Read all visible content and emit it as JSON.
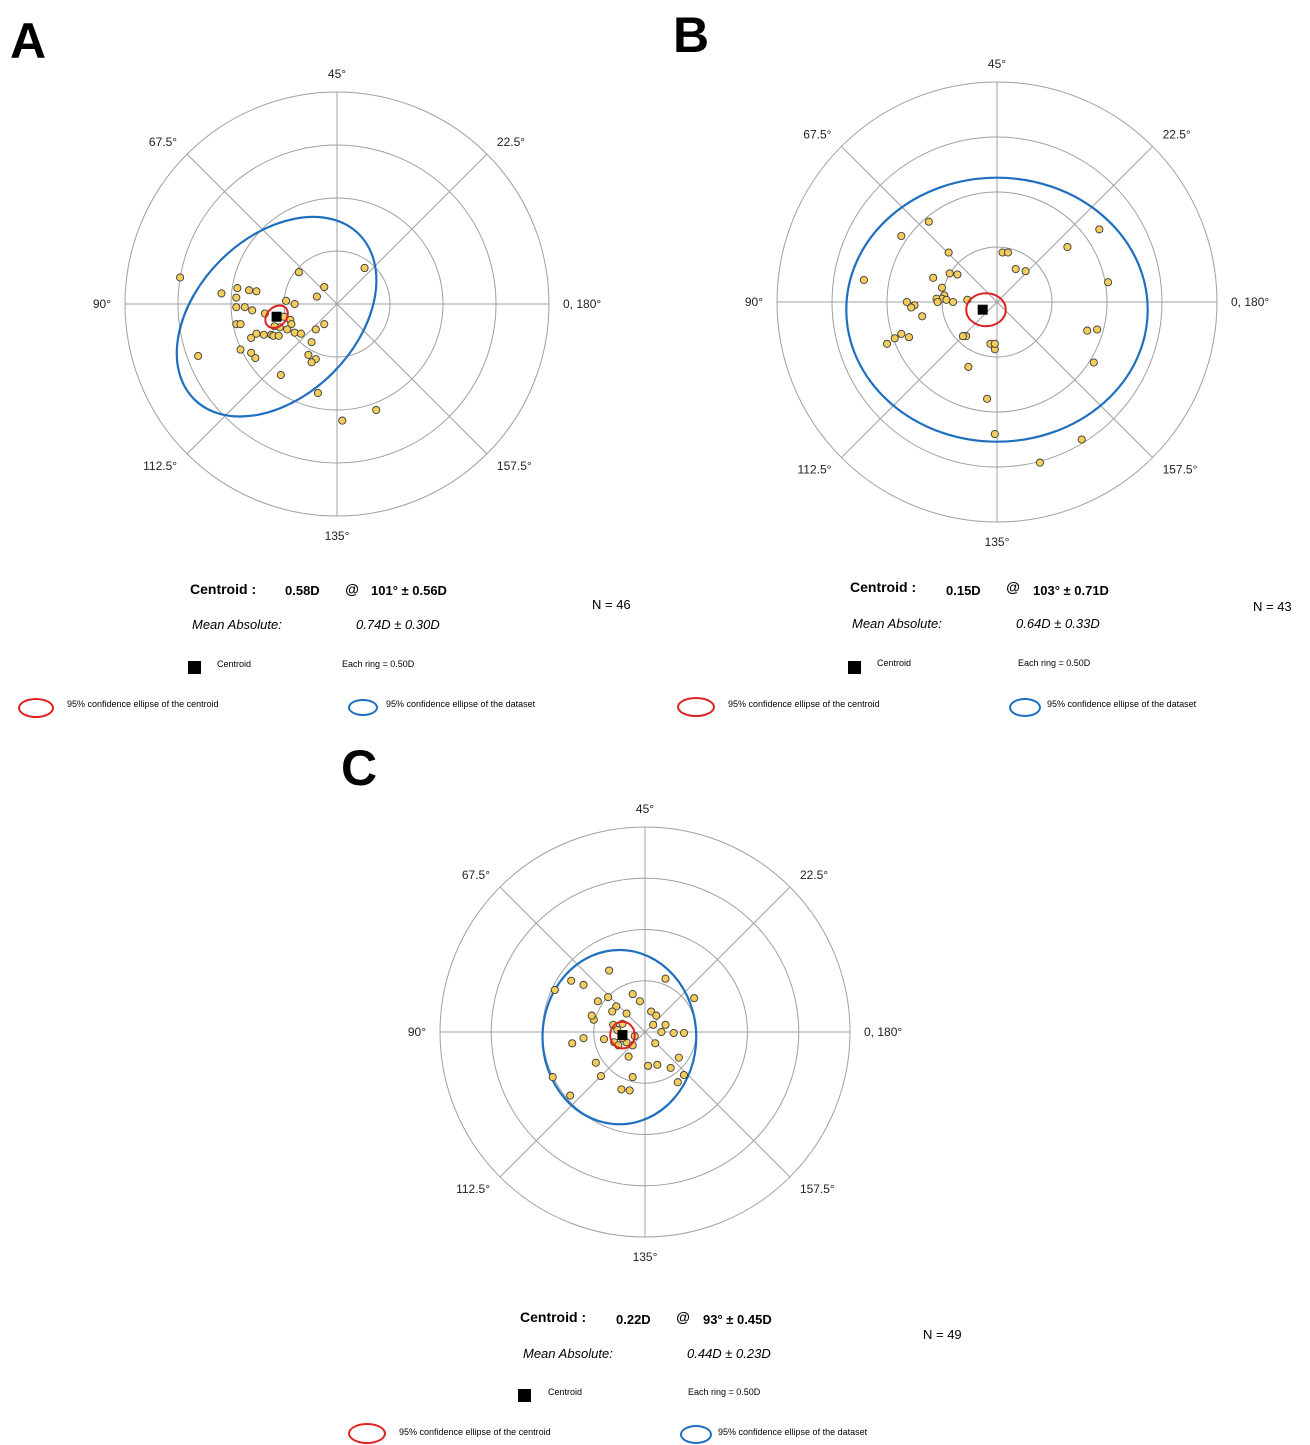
{
  "colors": {
    "point_fill": "#f2cd5c",
    "point_stroke": "#3a3a3a",
    "centroid_ellipse": "#e02020",
    "dataset_ellipse": "#1f6fc0",
    "grid": "#a0a0a0",
    "centroid": "#000000"
  },
  "panels": [
    {
      "panel_label": "A",
      "angle_labels": [
        "45°",
        "22.5°",
        "0, 180°",
        "157.5°",
        "135°",
        "112.5°",
        "90°",
        "67.5°"
      ],
      "stats": {
        "centroid_label": "Centroid :",
        "centroid_value": "0.58D",
        "at": "@",
        "axis_value": "101° ± 0.56D",
        "mean_label": "Mean Absolute:",
        "mean_value": "0.74D  ±  0.30D",
        "n": "N = 46"
      },
      "legend": {
        "centroid": "Centroid",
        "ring": "Each ring = 0.50D",
        "centroid_ellipse": "95% confidence ellipse of the centroid",
        "dataset_ellipse": "95% confidence ellipse of the dataset"
      },
      "chart_data": {
        "type": "scatter",
        "coordinates": "double-angle polar",
        "ring_step": 0.5,
        "rings": 4,
        "centroid": {
          "x": -0.57,
          "y": -0.12
        },
        "centroid_ellipse": {
          "cx": -0.57,
          "cy": -0.12,
          "rx": 0.12,
          "ry": 0.09,
          "rotation": -45
        },
        "dataset_ellipse": {
          "cx": -0.57,
          "cy": -0.12,
          "rx": 1.1,
          "ry": 0.75,
          "rotation": -45
        },
        "points": [
          [
            0.26,
            0.34
          ],
          [
            -0.36,
            0.3
          ],
          [
            -0.12,
            0.16
          ],
          [
            -1.48,
            0.25
          ],
          [
            -1.09,
            0.1
          ],
          [
            -0.94,
            0.15
          ],
          [
            -0.83,
            0.13
          ],
          [
            -0.76,
            0.12
          ],
          [
            -0.95,
            0.06
          ],
          [
            -0.87,
            -0.03
          ],
          [
            -0.95,
            -0.03
          ],
          [
            -0.68,
            -0.09
          ],
          [
            -0.48,
            0.03
          ],
          [
            -0.4,
            0.0
          ],
          [
            -0.19,
            0.07
          ],
          [
            -0.8,
            -0.06
          ],
          [
            -0.95,
            -0.19
          ],
          [
            -0.91,
            -0.19
          ],
          [
            -0.81,
            -0.32
          ],
          [
            -0.76,
            -0.28
          ],
          [
            -0.69,
            -0.29
          ],
          [
            -0.62,
            -0.29
          ],
          [
            -0.54,
            -0.22
          ],
          [
            -0.5,
            -0.12
          ],
          [
            -0.44,
            -0.15
          ],
          [
            -0.43,
            -0.19
          ],
          [
            -0.4,
            -0.27
          ],
          [
            -0.34,
            -0.28
          ],
          [
            -0.2,
            -0.24
          ],
          [
            -0.24,
            -0.36
          ],
          [
            -0.12,
            -0.19
          ],
          [
            -0.91,
            -0.43
          ],
          [
            -0.81,
            -0.46
          ],
          [
            -0.77,
            -0.51
          ],
          [
            -0.27,
            -0.48
          ],
          [
            -0.2,
            -0.52
          ],
          [
            -0.24,
            -0.55
          ],
          [
            -0.53,
            -0.67
          ],
          [
            -0.18,
            -0.84
          ],
          [
            0.05,
            -1.1
          ],
          [
            0.37,
            -1.0
          ],
          [
            -1.31,
            -0.49
          ],
          [
            -0.59,
            -0.21
          ],
          [
            -0.47,
            -0.24
          ],
          [
            -0.6,
            -0.3
          ],
          [
            -0.55,
            -0.3
          ]
        ]
      }
    },
    {
      "panel_label": "B",
      "angle_labels": [
        "45°",
        "22.5°",
        "0, 180°",
        "157.5°",
        "135°",
        "112.5°",
        "90°",
        "67.5°"
      ],
      "stats": {
        "centroid_label": "Centroid :",
        "centroid_value": "0.15D",
        "at": "@",
        "axis_value": "103° ± 0.71D",
        "mean_label": "Mean Absolute:",
        "mean_value": "0.64D  ±  0.33D",
        "n": "N = 43"
      },
      "legend": {
        "centroid": "Centroid",
        "ring": "Each ring = 0.50D",
        "centroid_ellipse": "95% confidence ellipse of the centroid",
        "dataset_ellipse": "95% confidence ellipse of the dataset"
      },
      "chart_data": {
        "type": "scatter",
        "coordinates": "double-angle polar",
        "ring_step": 0.5,
        "rings": 4,
        "centroid": {
          "x": -0.13,
          "y": -0.07
        },
        "centroid_ellipse": {
          "cx": -0.1,
          "cy": -0.07,
          "rx": 0.18,
          "ry": 0.15,
          "rotation": 0
        },
        "dataset_ellipse": {
          "cx": 0.0,
          "cy": -0.07,
          "rx": 1.37,
          "ry": 1.2,
          "rotation": 0
        },
        "points": [
          [
            -0.62,
            0.73
          ],
          [
            -0.87,
            0.6
          ],
          [
            -0.44,
            0.45
          ],
          [
            0.05,
            0.45
          ],
          [
            0.1,
            0.45
          ],
          [
            0.17,
            0.3
          ],
          [
            0.26,
            0.28
          ],
          [
            0.64,
            0.5
          ],
          [
            0.93,
            0.66
          ],
          [
            -0.58,
            0.22
          ],
          [
            -0.43,
            0.26
          ],
          [
            -0.36,
            0.25
          ],
          [
            -0.5,
            0.13
          ],
          [
            -0.48,
            0.06
          ],
          [
            -0.5,
            0.03
          ],
          [
            -0.55,
            0.03
          ],
          [
            -0.54,
            0.0
          ],
          [
            -0.46,
            0.02
          ],
          [
            -0.4,
            0.0
          ],
          [
            -1.21,
            0.2
          ],
          [
            -0.82,
            0.0
          ],
          [
            -0.75,
            -0.03
          ],
          [
            -0.78,
            -0.05
          ],
          [
            -0.27,
            0.02
          ],
          [
            -0.68,
            -0.13
          ],
          [
            -0.87,
            -0.29
          ],
          [
            -0.93,
            -0.33
          ],
          [
            -0.8,
            -0.32
          ],
          [
            -1.0,
            -0.38
          ],
          [
            -0.28,
            -0.31
          ],
          [
            -0.31,
            -0.31
          ],
          [
            -0.06,
            -0.38
          ],
          [
            -0.02,
            -0.43
          ],
          [
            -0.02,
            -0.38
          ],
          [
            -0.26,
            -0.59
          ],
          [
            -0.09,
            -0.88
          ],
          [
            -0.02,
            -1.2
          ],
          [
            0.39,
            -1.46
          ],
          [
            0.82,
            -0.26
          ],
          [
            0.91,
            -0.25
          ],
          [
            0.88,
            -0.55
          ],
          [
            0.77,
            -1.25
          ],
          [
            1.01,
            0.18
          ]
        ]
      }
    },
    {
      "panel_label": "C",
      "angle_labels": [
        "45°",
        "22.5°",
        "0, 180°",
        "157.5°",
        "135°",
        "112.5°",
        "90°",
        "67.5°"
      ],
      "stats": {
        "centroid_label": "Centroid :",
        "centroid_value": "0.22D",
        "at": "@",
        "axis_value": "93°  ± 0.45D",
        "mean_label": "Mean Absolute:",
        "mean_value": "0.44D  ±  0.23D",
        "n": "N = 49"
      },
      "legend": {
        "centroid": "Centroid",
        "ring": "Each ring = 0.50D",
        "centroid_ellipse": "95% confidence ellipse of the centroid",
        "dataset_ellipse": "95% confidence ellipse of the dataset"
      },
      "chart_data": {
        "type": "scatter",
        "coordinates": "double-angle polar",
        "ring_step": 0.5,
        "rings": 4,
        "centroid": {
          "x": -0.22,
          "y": -0.03
        },
        "centroid_ellipse": {
          "cx": -0.22,
          "cy": -0.03,
          "rx": 0.12,
          "ry": 0.13,
          "rotation": 0
        },
        "dataset_ellipse": {
          "cx": -0.25,
          "cy": -0.05,
          "rx": 0.75,
          "ry": 0.85,
          "rotation": 0
        },
        "points": [
          [
            -0.72,
            0.5
          ],
          [
            -0.6,
            0.46
          ],
          [
            -0.35,
            0.6
          ],
          [
            -0.88,
            0.41
          ],
          [
            0.2,
            0.52
          ],
          [
            0.48,
            0.33
          ],
          [
            -0.46,
            0.3
          ],
          [
            -0.36,
            0.34
          ],
          [
            -0.12,
            0.37
          ],
          [
            -0.5,
            0.12
          ],
          [
            -0.52,
            0.16
          ],
          [
            -0.28,
            0.25
          ],
          [
            -0.31,
            0.07
          ],
          [
            -0.27,
            0.02
          ],
          [
            -0.22,
            0.08
          ],
          [
            0.06,
            0.2
          ],
          [
            0.11,
            0.16
          ],
          [
            0.2,
            0.07
          ],
          [
            0.38,
            -0.01
          ],
          [
            0.16,
            0.0
          ],
          [
            0.28,
            -0.01
          ],
          [
            0.08,
            0.07
          ],
          [
            -0.6,
            -0.06
          ],
          [
            -0.3,
            -0.1
          ],
          [
            -0.26,
            -0.13
          ],
          [
            -0.18,
            -0.1
          ],
          [
            -0.12,
            -0.13
          ],
          [
            -0.16,
            -0.24
          ],
          [
            -0.48,
            -0.3
          ],
          [
            -0.43,
            -0.43
          ],
          [
            -0.71,
            -0.11
          ],
          [
            -0.12,
            -0.44
          ],
          [
            0.03,
            -0.33
          ],
          [
            0.12,
            -0.32
          ],
          [
            0.33,
            -0.25
          ],
          [
            0.25,
            -0.35
          ],
          [
            0.38,
            -0.42
          ],
          [
            0.32,
            -0.49
          ],
          [
            -0.23,
            -0.56
          ],
          [
            -0.15,
            -0.57
          ],
          [
            -0.9,
            -0.44
          ],
          [
            -0.73,
            -0.62
          ],
          [
            -0.4,
            -0.07
          ],
          [
            -0.22,
            -0.06
          ],
          [
            -0.1,
            -0.04
          ],
          [
            -0.05,
            0.3
          ],
          [
            -0.32,
            0.2
          ],
          [
            0.1,
            -0.11
          ],
          [
            -0.18,
            0.18
          ]
        ]
      }
    }
  ]
}
